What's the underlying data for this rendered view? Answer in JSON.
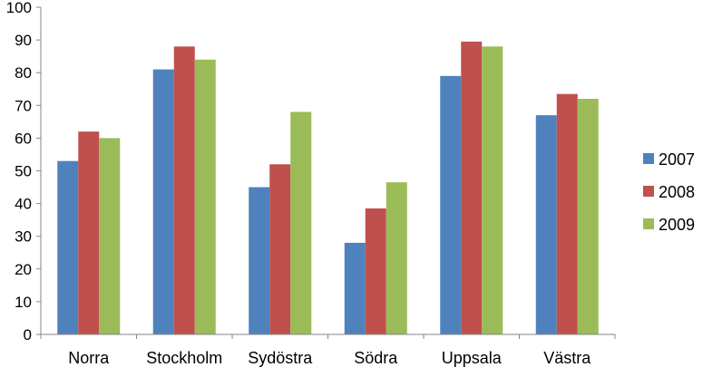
{
  "chart_data": {
    "type": "bar",
    "categories": [
      "Norra",
      "Stockholm",
      "Sydöstra",
      "Södra",
      "Uppsala",
      "Västra"
    ],
    "series": [
      {
        "name": "2007",
        "values": [
          53,
          81,
          45,
          28,
          79,
          67
        ],
        "color": "#4F81BD"
      },
      {
        "name": "2008",
        "values": [
          62,
          88,
          52,
          38.5,
          89.5,
          73.5
        ],
        "color": "#C0504D"
      },
      {
        "name": "2009",
        "values": [
          60,
          84,
          68,
          46.5,
          88,
          72
        ],
        "color": "#9BBB59"
      }
    ],
    "y_ticks": [
      "0",
      "10",
      "20",
      "30",
      "40",
      "50",
      "60",
      "70",
      "80",
      "90",
      "100"
    ],
    "ylim": [
      0,
      100
    ],
    "grid": false,
    "legend_position": "right"
  }
}
